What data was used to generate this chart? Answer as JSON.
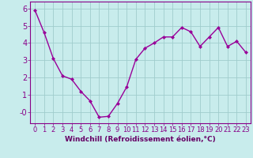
{
  "x": [
    0,
    1,
    2,
    3,
    4,
    5,
    6,
    7,
    8,
    9,
    10,
    11,
    12,
    13,
    14,
    15,
    16,
    17,
    18,
    19,
    20,
    21,
    22,
    23
  ],
  "y": [
    5.9,
    4.6,
    3.1,
    2.1,
    1.9,
    1.2,
    0.65,
    -0.3,
    -0.25,
    0.5,
    1.45,
    3.05,
    3.7,
    4.0,
    4.35,
    4.35,
    4.9,
    4.65,
    3.8,
    4.35,
    4.9,
    3.8,
    4.1,
    3.45
  ],
  "line_color": "#990099",
  "marker": "D",
  "marker_size": 2,
  "bg_color": "#c8ecec",
  "grid_color": "#a0cccc",
  "xlabel": "Windchill (Refroidissement éolien,°C)",
  "xlabel_color": "#660066",
  "tick_color": "#880088",
  "xlim": [
    -0.5,
    23.5
  ],
  "ylim": [
    -0.65,
    6.4
  ],
  "yticks": [
    0,
    1,
    2,
    3,
    4,
    5,
    6
  ],
  "ytick_labels": [
    "-0",
    "1",
    "2",
    "3",
    "4",
    "5",
    "6"
  ],
  "xticks": [
    0,
    1,
    2,
    3,
    4,
    5,
    6,
    7,
    8,
    9,
    10,
    11,
    12,
    13,
    14,
    15,
    16,
    17,
    18,
    19,
    20,
    21,
    22,
    23
  ],
  "spine_color": "#880088",
  "linewidth": 1.0,
  "tick_fontsize": 6.0,
  "xlabel_fontsize": 6.5
}
